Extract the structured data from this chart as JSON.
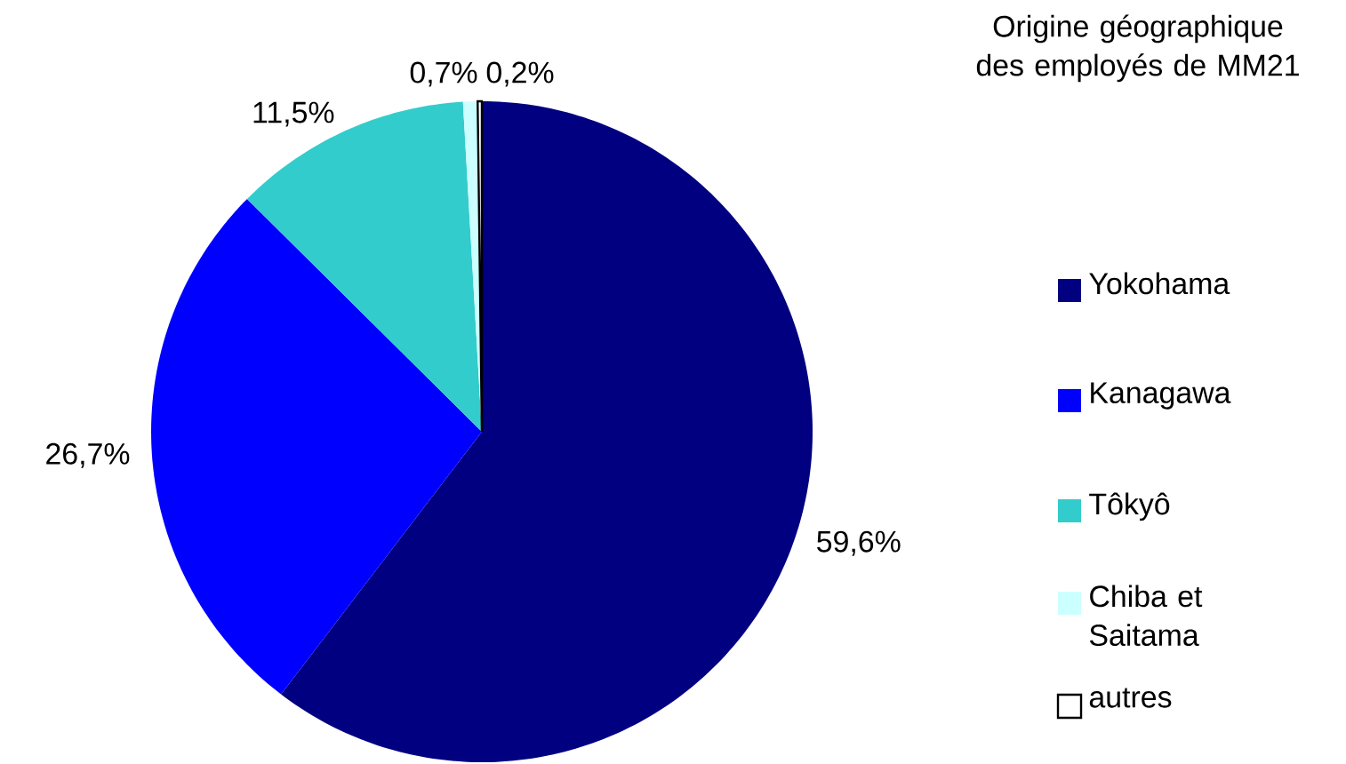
{
  "chart_data": {
    "type": "pie",
    "title": "Origine géographique des employés de MM21",
    "categories": [
      "Yokohama",
      "Kanagawa",
      "Tôkyô",
      "Chiba et Saitama",
      "autres"
    ],
    "values": [
      59.6,
      26.7,
      11.5,
      0.7,
      0.2
    ],
    "value_labels": [
      "59,6%",
      "26,7%",
      "11,5%",
      "0,7%",
      "0,2%"
    ],
    "colors": [
      "#000080",
      "#0000ff",
      "#33cccc",
      "#ccffff",
      "#ffffff"
    ],
    "legend": "right"
  }
}
